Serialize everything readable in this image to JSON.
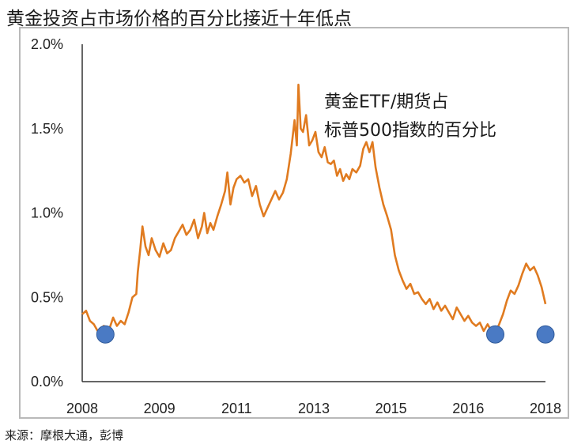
{
  "title": "黄金投资占市场价格的百分比接近十年低点",
  "source": "来源：摩根大通，彭博",
  "chart_data": {
    "type": "line",
    "annotation_lines": [
      "黄金ETF/期货占",
      "标普500指数的百分比"
    ],
    "y_ticks": [
      "0.0%",
      "0.5%",
      "1.0%",
      "1.5%",
      "2.0%"
    ],
    "x_ticks": [
      "2008",
      "2009",
      "2011",
      "2013",
      "2015",
      "2016",
      "2018"
    ],
    "ylim": [
      0,
      2.0
    ],
    "xlim": [
      0,
      6
    ],
    "series": [
      {
        "color": "#e07b20",
        "points": [
          [
            0.0,
            0.4
          ],
          [
            0.05,
            0.42
          ],
          [
            0.1,
            0.36
          ],
          [
            0.15,
            0.34
          ],
          [
            0.2,
            0.3
          ],
          [
            0.28,
            0.33
          ],
          [
            0.35,
            0.31
          ],
          [
            0.4,
            0.38
          ],
          [
            0.45,
            0.33
          ],
          [
            0.5,
            0.36
          ],
          [
            0.55,
            0.34
          ],
          [
            0.6,
            0.41
          ],
          [
            0.65,
            0.5
          ],
          [
            0.7,
            0.52
          ],
          [
            0.72,
            0.65
          ],
          [
            0.75,
            0.78
          ],
          [
            0.78,
            0.92
          ],
          [
            0.82,
            0.8
          ],
          [
            0.86,
            0.75
          ],
          [
            0.9,
            0.85
          ],
          [
            0.95,
            0.78
          ],
          [
            1.0,
            0.74
          ],
          [
            1.05,
            0.82
          ],
          [
            1.1,
            0.76
          ],
          [
            1.15,
            0.78
          ],
          [
            1.2,
            0.85
          ],
          [
            1.25,
            0.89
          ],
          [
            1.3,
            0.93
          ],
          [
            1.35,
            0.87
          ],
          [
            1.4,
            0.9
          ],
          [
            1.45,
            0.96
          ],
          [
            1.5,
            0.85
          ],
          [
            1.55,
            0.92
          ],
          [
            1.58,
            1.0
          ],
          [
            1.62,
            0.88
          ],
          [
            1.66,
            0.94
          ],
          [
            1.7,
            0.9
          ],
          [
            1.75,
            0.98
          ],
          [
            1.8,
            1.05
          ],
          [
            1.85,
            1.13
          ],
          [
            1.88,
            1.24
          ],
          [
            1.92,
            1.05
          ],
          [
            1.96,
            1.15
          ],
          [
            2.0,
            1.2
          ],
          [
            2.05,
            1.22
          ],
          [
            2.1,
            1.18
          ],
          [
            2.15,
            1.2
          ],
          [
            2.2,
            1.1
          ],
          [
            2.25,
            1.16
          ],
          [
            2.3,
            1.05
          ],
          [
            2.35,
            0.98
          ],
          [
            2.4,
            1.03
          ],
          [
            2.45,
            1.08
          ],
          [
            2.5,
            1.13
          ],
          [
            2.55,
            1.08
          ],
          [
            2.6,
            1.12
          ],
          [
            2.65,
            1.2
          ],
          [
            2.7,
            1.35
          ],
          [
            2.75,
            1.55
          ],
          [
            2.78,
            1.4
          ],
          [
            2.8,
            1.76
          ],
          [
            2.83,
            1.5
          ],
          [
            2.86,
            1.48
          ],
          [
            2.9,
            1.58
          ],
          [
            2.94,
            1.4
          ],
          [
            2.98,
            1.43
          ],
          [
            3.02,
            1.48
          ],
          [
            3.06,
            1.36
          ],
          [
            3.1,
            1.33
          ],
          [
            3.14,
            1.39
          ],
          [
            3.18,
            1.3
          ],
          [
            3.22,
            1.29
          ],
          [
            3.26,
            1.31
          ],
          [
            3.3,
            1.22
          ],
          [
            3.34,
            1.26
          ],
          [
            3.38,
            1.19
          ],
          [
            3.42,
            1.23
          ],
          [
            3.46,
            1.2
          ],
          [
            3.5,
            1.26
          ],
          [
            3.55,
            1.24
          ],
          [
            3.6,
            1.28
          ],
          [
            3.64,
            1.38
          ],
          [
            3.68,
            1.42
          ],
          [
            3.72,
            1.36
          ],
          [
            3.76,
            1.42
          ],
          [
            3.8,
            1.27
          ],
          [
            3.85,
            1.15
          ],
          [
            3.9,
            1.05
          ],
          [
            3.95,
            0.98
          ],
          [
            4.0,
            0.9
          ],
          [
            4.05,
            0.75
          ],
          [
            4.1,
            0.66
          ],
          [
            4.15,
            0.6
          ],
          [
            4.2,
            0.55
          ],
          [
            4.25,
            0.58
          ],
          [
            4.3,
            0.52
          ],
          [
            4.35,
            0.53
          ],
          [
            4.4,
            0.49
          ],
          [
            4.45,
            0.46
          ],
          [
            4.5,
            0.49
          ],
          [
            4.55,
            0.43
          ],
          [
            4.6,
            0.47
          ],
          [
            4.65,
            0.42
          ],
          [
            4.7,
            0.45
          ],
          [
            4.75,
            0.41
          ],
          [
            4.8,
            0.37
          ],
          [
            4.85,
            0.44
          ],
          [
            4.9,
            0.4
          ],
          [
            4.95,
            0.36
          ],
          [
            5.0,
            0.39
          ],
          [
            5.05,
            0.35
          ],
          [
            5.1,
            0.33
          ],
          [
            5.15,
            0.35
          ],
          [
            5.2,
            0.3
          ],
          [
            5.25,
            0.34
          ],
          [
            5.3,
            0.3
          ],
          [
            5.35,
            0.29
          ],
          [
            5.4,
            0.34
          ],
          [
            5.45,
            0.4
          ],
          [
            5.5,
            0.48
          ],
          [
            5.55,
            0.54
          ],
          [
            5.6,
            0.52
          ],
          [
            5.65,
            0.57
          ],
          [
            5.7,
            0.64
          ],
          [
            5.75,
            0.7
          ],
          [
            5.8,
            0.66
          ],
          [
            5.85,
            0.68
          ],
          [
            5.9,
            0.63
          ],
          [
            5.95,
            0.56
          ],
          [
            6.0,
            0.46
          ]
        ]
      }
    ],
    "markers": [
      [
        0.3,
        0.28
      ],
      [
        5.35,
        0.28
      ],
      [
        6.0,
        0.28
      ]
    ],
    "marker_color": "#4a7ac4"
  }
}
